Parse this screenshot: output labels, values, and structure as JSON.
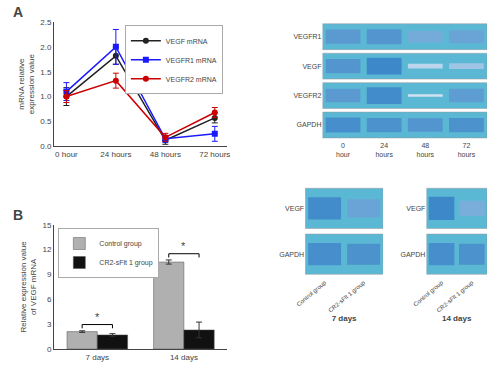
{
  "chart_data": [
    {
      "type": "line",
      "title": "A",
      "categories": [
        "0 hour",
        "24 hours",
        "48 hours",
        "72 hours"
      ],
      "ylabel": "mRNA relative\nexpression value",
      "ylim": [
        0.0,
        2.5
      ],
      "yticks": [
        {
          "value": 0.0,
          "label": "0.0"
        },
        0.5,
        {
          "value": 1.0,
          "label": "1.0"
        },
        1.5,
        {
          "value": 2.0,
          "label": "2.0"
        },
        2.5
      ],
      "grid": false,
      "legend": "upper right",
      "series": [
        {
          "name": "VEGF mRNA",
          "color": "#222222",
          "marker": "circle",
          "values": [
            1.0,
            1.82,
            0.12,
            0.57
          ],
          "errors": [
            0.18,
            0.17,
            0.08,
            0.1
          ]
        },
        {
          "name": "VEGFR1 mRNA",
          "color": "#1a1aff",
          "marker": "square",
          "values": [
            1.1,
            2.0,
            0.15,
            0.25
          ],
          "errors": [
            0.18,
            0.35,
            0.07,
            0.15
          ]
        },
        {
          "name": "VEGFR2 mRNA",
          "color": "#cc0000",
          "marker": "circle",
          "values": [
            1.0,
            1.32,
            0.18,
            0.68
          ],
          "errors": [
            0.12,
            0.15,
            0.08,
            0.1
          ]
        }
      ]
    },
    {
      "type": "bar",
      "title": "B",
      "categories": [
        "7 days",
        "14 days"
      ],
      "ylabel": "Relative expression value\nof VEGF mRNA",
      "ylim": [
        0,
        15
      ],
      "yticks": [
        0,
        3,
        6,
        9,
        12,
        15
      ],
      "grid": false,
      "legend": "upper left",
      "series": [
        {
          "name": "Control group",
          "color": "#b0b0b0",
          "values": [
            2.1,
            10.5
          ],
          "errors": [
            0.1,
            0.25
          ]
        },
        {
          "name": "CR2-sFlt 1 group",
          "color": "#111111",
          "values": [
            1.7,
            2.3
          ],
          "errors": [
            0.15,
            0.95
          ]
        }
      ],
      "annotations": [
        {
          "text": "*",
          "category": "7 days"
        },
        {
          "text": "*",
          "category": "14 days"
        }
      ]
    },
    {
      "type": "blot",
      "color": "#5bb8d4",
      "categories": [
        "0\nhour",
        "24\nhours",
        "48\nhours",
        "72\nhours"
      ],
      "rows": [
        "VEGFR1",
        "VEGF",
        "VEGFR2",
        "GAPDH"
      ],
      "thickness": [
        [
          0.55,
          0.58,
          0.45,
          0.5
        ],
        [
          0.55,
          0.65,
          0.18,
          0.22
        ],
        [
          0.52,
          0.65,
          0.1,
          0.52
        ],
        [
          0.58,
          0.55,
          0.52,
          0.55
        ]
      ],
      "darkness": [
        [
          0.72,
          0.75,
          0.6,
          0.65
        ],
        [
          0.75,
          0.85,
          0.3,
          0.42
        ],
        [
          0.72,
          0.82,
          0.2,
          0.7
        ],
        [
          0.8,
          0.78,
          0.75,
          0.78
        ]
      ]
    },
    {
      "type": "blot",
      "color": "#5bb8d4",
      "xlabel": "7 days",
      "categories": [
        "Control group",
        "CR2-sFlt 1 group"
      ],
      "rows": [
        "VEGF",
        "GAPDH"
      ],
      "thickness": [
        [
          0.55,
          0.45
        ],
        [
          0.55,
          0.52
        ]
      ],
      "darkness": [
        [
          0.82,
          0.65
        ],
        [
          0.8,
          0.78
        ]
      ]
    },
    {
      "type": "blot",
      "color": "#5bb8d4",
      "xlabel": "14 days",
      "categories": [
        "Control group",
        "CR2-sFlt 1 group"
      ],
      "rows": [
        "VEGF",
        "GAPDH"
      ],
      "thickness": [
        [
          0.58,
          0.38
        ],
        [
          0.55,
          0.52
        ]
      ],
      "darkness": [
        [
          0.85,
          0.58
        ],
        [
          0.8,
          0.78
        ]
      ]
    }
  ]
}
